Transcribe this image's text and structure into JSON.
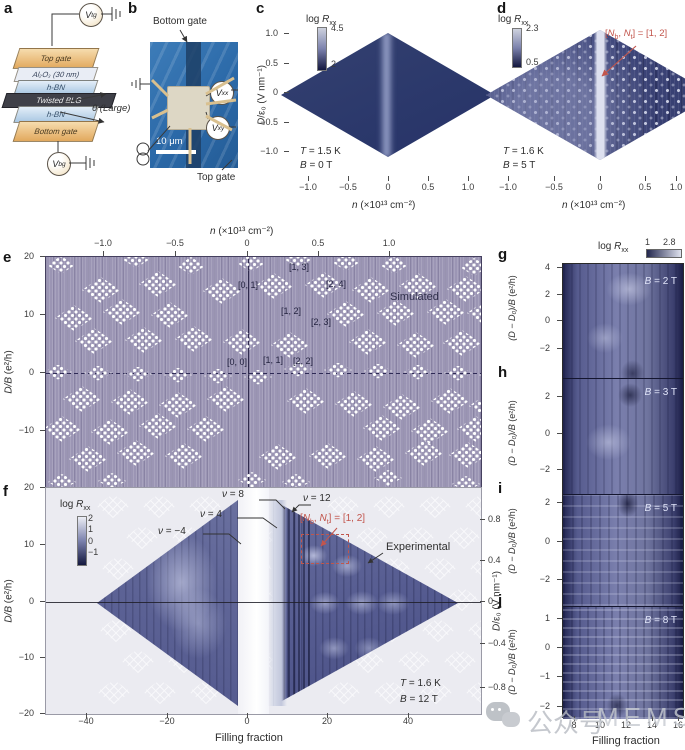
{
  "panel_a": {
    "label": "a",
    "v_top": {
      "v": "V",
      "sub": "tg"
    },
    "v_bot": {
      "v": "V",
      "sub": "bg"
    },
    "layers": [
      "Top gate",
      "Al₂O₃ (30 nm)",
      "h-BN",
      "Twisted BLG",
      "h-BN",
      "Bottom gate"
    ],
    "theta_label": "θ (Large)"
  },
  "panel_b": {
    "label": "b",
    "bottom_gate": "Bottom gate",
    "top_gate": "Top gate",
    "scale_bar": "10 μm",
    "v_xx": {
      "v": "V",
      "sub": "xx"
    },
    "v_xy": {
      "v": "V",
      "sub": "xy"
    }
  },
  "panel_c": {
    "label": "c",
    "colorbar": {
      "pre": "log ",
      "v": "R",
      "sub": "xx",
      "max": "4.5",
      "min": "2"
    },
    "ylabel": {
      "v": "D",
      "rest": "/ε₀ (V nm⁻¹)"
    },
    "yticks": [
      "1.0",
      "0.5",
      "0",
      "−0.5",
      "−1.0"
    ],
    "xlabel": {
      "v": "n",
      "rest": " (×10¹³ cm⁻²)"
    },
    "xticks": [
      "−1.0",
      "−0.5",
      "0",
      "0.5",
      "1.0"
    ],
    "cond": {
      "t_var": "T",
      "t_rest": " = 1.5 K",
      "b_var": "B",
      "b_rest": " = 0 T"
    }
  },
  "panel_d": {
    "label": "d",
    "colorbar": {
      "pre": "log ",
      "v": "R",
      "sub": "xx",
      "max": "2.3",
      "min": "0.5"
    },
    "note": {
      "b1": "[",
      "n1": "N",
      "s1": "b",
      "mid": ", ",
      "n2": "N",
      "s2": "t",
      "tail": "] = [1, 2]"
    },
    "xlabel": {
      "v": "n",
      "rest": " (×10¹³ cm⁻²)"
    },
    "xticks": [
      "−1.0",
      "−0.5",
      "0",
      "0.5",
      "1.0"
    ],
    "cond": {
      "t_var": "T",
      "t_rest": " = 1.6 K",
      "b_var": "B",
      "b_rest": " = 5 T"
    }
  },
  "panel_e": {
    "label": "e",
    "top_axis": {
      "title": {
        "v": "n",
        "rest": " (×10¹³ cm⁻²)"
      },
      "ticks": [
        "−1.0",
        "−0.5",
        "0",
        "0.5",
        "1.0"
      ]
    },
    "ylabel": {
      "v": "D/B",
      "rest": " (e²/h)"
    },
    "yticks": [
      "20",
      "10",
      "0",
      "−10"
    ],
    "notes": {
      "n13": "[1, 3]",
      "n01": "[0, 1]",
      "n24": "[2, 4]",
      "n12": "[1, 2]",
      "n23": "[2, 3]",
      "n00": "[0, 0]",
      "n11": "[1, 1]",
      "n22": "[2, 2]"
    },
    "tag": "Simulated"
  },
  "panel_f": {
    "label": "f",
    "colorbar": {
      "pre": "log ",
      "v": "R",
      "sub": "xx",
      "ticks": [
        "2",
        "1",
        "0",
        "−1"
      ]
    },
    "ylabel": {
      "v": "D/B",
      "rest": " (e²/h)"
    },
    "yticks": [
      "20",
      "10",
      "0",
      "−10",
      "−20"
    ],
    "right_ylabel": {
      "v": "D",
      "rest": "/ε₀ (V nm⁻¹)"
    },
    "right_yticks": [
      "0.8",
      "0.4",
      "0",
      "−0.4",
      "−0.8"
    ],
    "xticks": [
      "−40",
      "−20",
      "0",
      "20",
      "40"
    ],
    "xlabel": "Filling fraction",
    "nu": {
      "n8": {
        "v": "ν",
        "rest": " = 8"
      },
      "n12": {
        "v": "ν",
        "rest": " = 12"
      },
      "n4": {
        "v": "ν",
        "rest": " = 4"
      },
      "nm4": {
        "v": "ν",
        "rest": " = −4"
      }
    },
    "note": {
      "b1": "[",
      "n1": "N",
      "s1": "b",
      "mid": ", ",
      "n2": "N",
      "s2": "t",
      "tail": "] = [1, 2]"
    },
    "tag": "Experimental",
    "cond": {
      "t_var": "T",
      "t_rest": " = 1.6 K",
      "b_var": "B",
      "b_rest": " = 12 T"
    }
  },
  "panels_gj": {
    "colorbar": {
      "pre": "log ",
      "v": "R",
      "sub": "xx",
      "min": "1",
      "max": "2.8"
    },
    "xticks": [
      "8",
      "10",
      "12",
      "14",
      "16"
    ],
    "xlabel": "Filling fraction",
    "panels": [
      {
        "label": "g",
        "field": {
          "v": "B",
          "rest": " = 2 T"
        },
        "ylabel": {
          "v": "(D − D₀)/B",
          "rest": " (e²/h)"
        },
        "yticks": [
          "4",
          "2",
          "0",
          "−2"
        ]
      },
      {
        "label": "h",
        "field": {
          "v": "B",
          "rest": " = 3 T"
        },
        "ylabel": {
          "v": "(D − D₀)/B",
          "rest": " (e²/h)"
        },
        "yticks": [
          "2",
          "0",
          "−2"
        ]
      },
      {
        "label": "i",
        "field": {
          "v": "B",
          "rest": " = 5 T"
        },
        "ylabel": {
          "v": "(D − D₀)/B",
          "rest": " (e²/h)"
        },
        "yticks": [
          "2",
          "0",
          "−2"
        ]
      },
      {
        "label": "j",
        "field": {
          "v": "B",
          "rest": " = 8 T"
        },
        "ylabel": {
          "v": "(D − D₀)/B",
          "rest": " (e²/h)"
        },
        "yticks": [
          "1",
          "0",
          "−1",
          "−2"
        ]
      }
    ]
  },
  "watermark": {
    "cn": "公众号",
    "en": "MEMS"
  }
}
